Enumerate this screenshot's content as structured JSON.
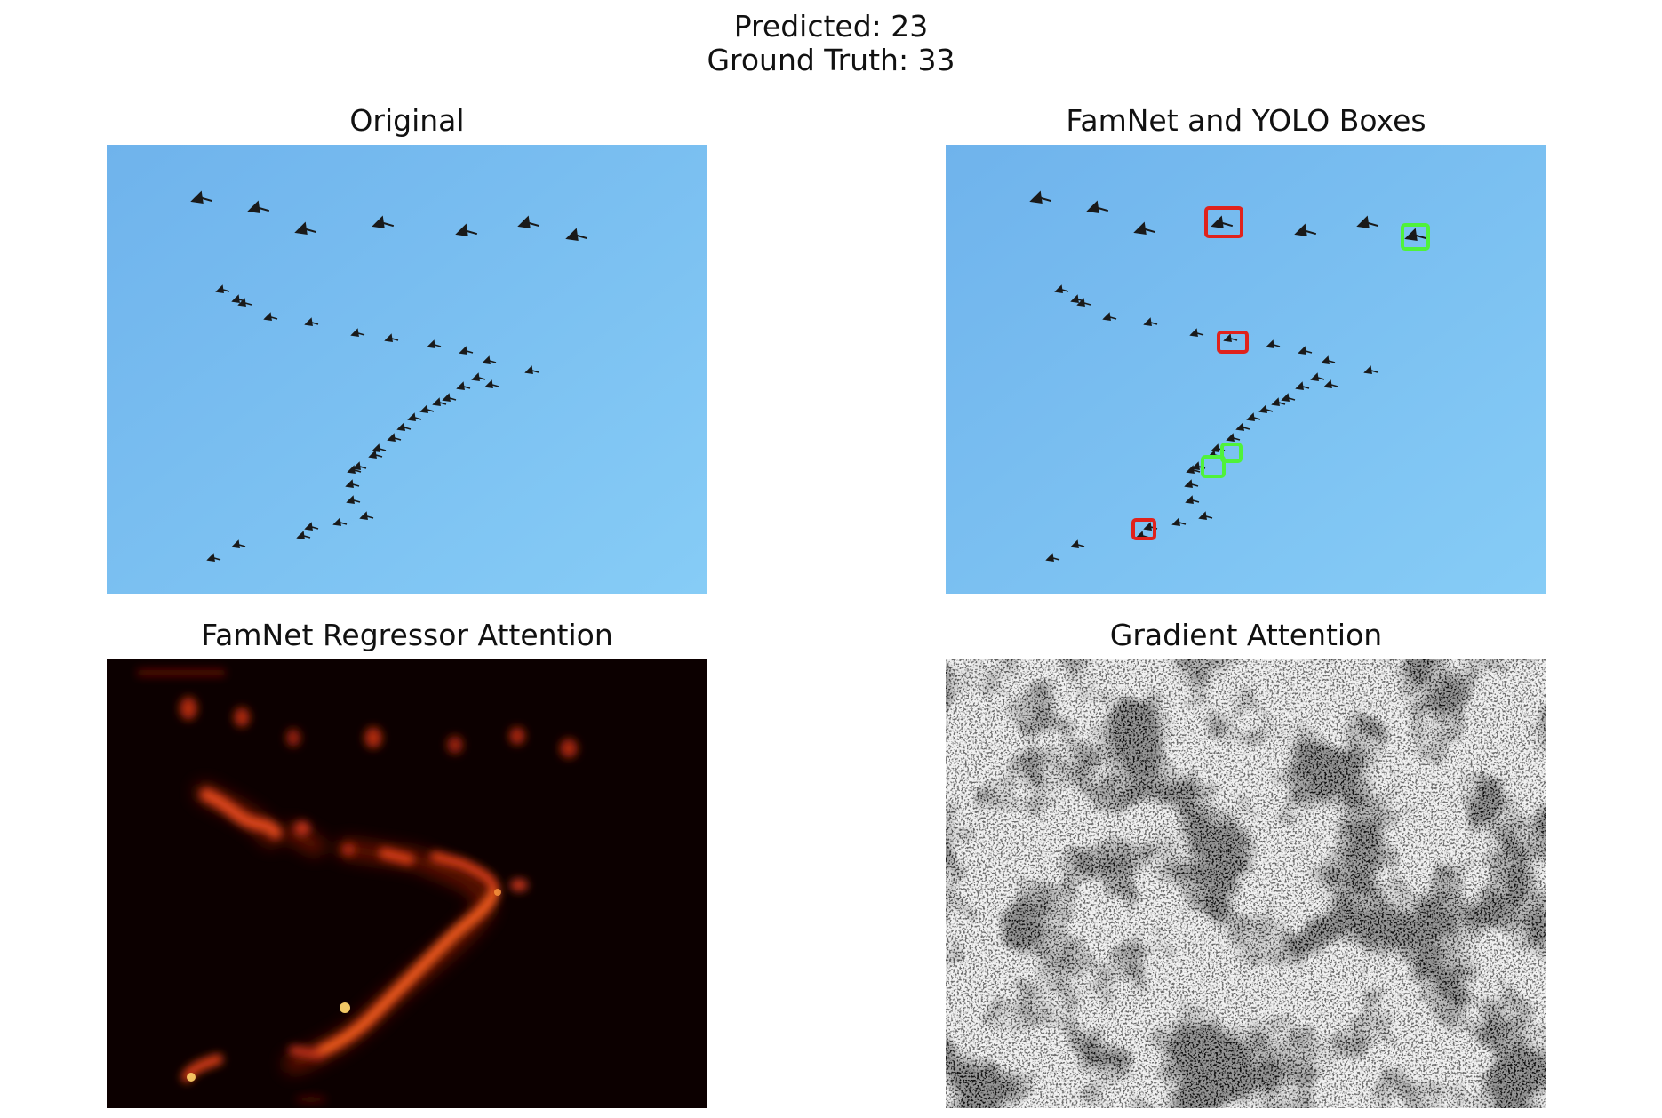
{
  "figure": {
    "suptitle_line1": "Predicted: 23",
    "suptitle_line2": "Ground Truth: 33"
  },
  "panels": [
    {
      "title": "Original"
    },
    {
      "title": "FamNet and YOLO Boxes"
    },
    {
      "title": "FamNet Regressor Attention"
    },
    {
      "title": "Gradient Attention"
    }
  ],
  "colors": {
    "sky_top": "#6fb3ec",
    "sky_bottom": "#86ccf6",
    "bird": "#1a1a1a",
    "box_red": "#e0221c",
    "box_green": "#4ff23a",
    "heat_background": "#0c0000",
    "heat_glow": "#e0461a",
    "heat_peak": "#ffd36a",
    "grad_light": "#f2f2f2",
    "grad_dark": "#151515"
  },
  "box_legend": {
    "red_count": 3,
    "green_count": 3
  }
}
